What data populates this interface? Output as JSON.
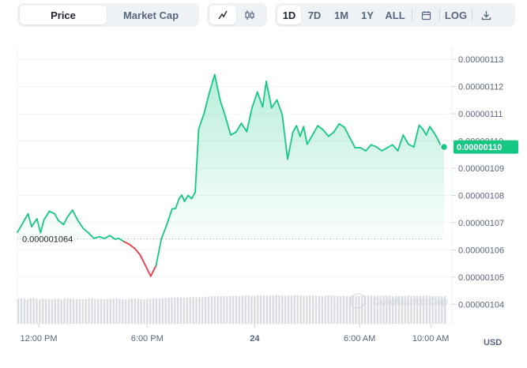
{
  "toolbar": {
    "view_tabs": [
      {
        "label": "Price",
        "active": true
      },
      {
        "label": "Market Cap",
        "active": false
      }
    ],
    "chart_type_icons": [
      {
        "name": "line-chart-icon",
        "active": true
      },
      {
        "name": "candlestick-icon",
        "active": false
      }
    ],
    "ranges": [
      {
        "label": "1D",
        "active": true
      },
      {
        "label": "7D",
        "active": false
      },
      {
        "label": "1M",
        "active": false
      },
      {
        "label": "1Y",
        "active": false
      },
      {
        "label": "ALL",
        "active": false
      }
    ],
    "calendar_icon": "calendar-icon",
    "log_label": "LOG",
    "download_icon": "download-icon"
  },
  "currency_label": "USD",
  "watermark": "CoinMarketCap",
  "colors": {
    "up": "#16c784",
    "down": "#ea3943",
    "badge": "#16c784",
    "grid": "#eff2f5",
    "volume": "#d9dde3"
  },
  "chart_data": {
    "type": "line",
    "y_axis_labels": [
      "0.00000113",
      "0.00000112",
      "0.00000111",
      "0.00000110",
      "0.00000109",
      "0.00000108",
      "0.00000107",
      "0.00000106",
      "0.00000105",
      "0.00000104"
    ],
    "y_axis_ticks": [
      1.13e-06,
      1.12e-06,
      1.11e-06,
      1.1e-06,
      1.09e-06,
      1.08e-06,
      1.07e-06,
      1.06e-06,
      1.05e-06,
      1.04e-06
    ],
    "ylim": [
      1.0363e-06,
      1.1344e-06
    ],
    "x_axis_labels": [
      "12:00 PM",
      "6:00 PM",
      "24",
      "6:00 AM",
      "10:00 AM"
    ],
    "x_axis_ticks": [
      11.8,
      17.9,
      23.95,
      29.85,
      33.85
    ],
    "xlim": [
      10.6,
      34.6
    ],
    "reference_price": 1.064e-06,
    "reference_label": "0.000001064",
    "current_price_label": "0.00000110",
    "x": [
      10.6,
      10.9,
      11.2,
      11.4,
      11.7,
      11.9,
      12.1,
      12.4,
      12.7,
      12.9,
      13.2,
      13.4,
      13.7,
      14.0,
      14.3,
      14.6,
      14.9,
      15.2,
      15.5,
      15.8,
      16.1,
      16.3,
      16.6,
      16.9,
      17.2,
      17.5,
      17.8,
      18.1,
      18.4,
      18.7,
      19.0,
      19.3,
      19.5,
      19.7,
      19.85,
      20.0,
      20.2,
      20.4,
      20.6,
      20.8,
      21.1,
      21.4,
      21.7,
      22.0,
      22.3,
      22.6,
      22.9,
      23.2,
      23.5,
      23.8,
      24.1,
      24.4,
      24.6,
      24.9,
      25.2,
      25.5,
      25.8,
      26.1,
      26.3,
      26.5,
      26.7,
      26.9,
      27.2,
      27.5,
      27.8,
      28.1,
      28.4,
      28.7,
      29.0,
      29.3,
      29.6,
      29.9,
      30.2,
      30.5,
      30.8,
      31.1,
      31.4,
      31.7,
      32.0,
      32.3,
      32.6,
      32.9,
      33.2,
      33.4,
      33.6,
      33.8,
      34.0,
      34.2,
      34.4,
      34.6
    ],
    "y": [
      1.0664e-06,
      1.0698e-06,
      1.0732e-06,
      1.0685e-06,
      1.0714e-06,
      1.0663e-06,
      1.0711e-06,
      1.0742e-06,
      1.0732e-06,
      1.0708e-06,
      1.0693e-06,
      1.0719e-06,
      1.0746e-06,
      1.0708e-06,
      1.0679e-06,
      1.0662e-06,
      1.0642e-06,
      1.0648e-06,
      1.0642e-06,
      1.0652e-06,
      1.0639e-06,
      1.0642e-06,
      1.063e-06,
      1.062e-06,
      1.0605e-06,
      1.0582e-06,
      1.0543e-06,
      1.0503e-06,
      1.0542e-06,
      1.064e-06,
      1.0692e-06,
      1.075e-06,
      1.0752e-06,
      1.0789e-06,
      1.0801e-06,
      1.0778e-06,
      1.08e-06,
      1.0788e-06,
      1.0811e-06,
      1.1044e-06,
      1.1101e-06,
      1.1178e-06,
      1.1244e-06,
      1.1151e-06,
      1.109e-06,
      1.1022e-06,
      1.1033e-06,
      1.1065e-06,
      1.1034e-06,
      1.1122e-06,
      1.118e-06,
      1.1125e-06,
      1.1219e-06,
      1.1122e-06,
      1.1151e-06,
      1.1096e-06,
      1.0933e-06,
      1.1033e-06,
      1.1056e-06,
      1.1017e-06,
      1.1053e-06,
      1.0988e-06,
      1.1022e-06,
      1.1056e-06,
      1.1041e-06,
      1.1017e-06,
      1.1033e-06,
      1.1063e-06,
      1.105e-06,
      1.1012e-06,
      1.0975e-06,
      1.0975e-06,
      1.0964e-06,
      1.0986e-06,
      1.0978e-06,
      1.0964e-06,
      1.0975e-06,
      1.0986e-06,
      1.0964e-06,
      1.1022e-06,
      1.0988e-06,
      1.0978e-06,
      1.1058e-06,
      1.1044e-06,
      1.1022e-06,
      1.1053e-06,
      1.1034e-06,
      1.1012e-06,
      1.0986e-06,
      1.0978e-06
    ],
    "volume": [
      0.7,
      0.71,
      0.69,
      0.72,
      0.7,
      0.71,
      0.7,
      0.69,
      0.71,
      0.7,
      0.72,
      0.71,
      0.7,
      0.69,
      0.7,
      0.71,
      0.7,
      0.7,
      0.69,
      0.7,
      0.71,
      0.7,
      0.69,
      0.7,
      0.71,
      0.7,
      0.69,
      0.7,
      0.71,
      0.72,
      0.72,
      0.73,
      0.74,
      0.74,
      0.75,
      0.74,
      0.75,
      0.74,
      0.75,
      0.76,
      0.77,
      0.78,
      0.78,
      0.77,
      0.78,
      0.79,
      0.78,
      0.79,
      0.8,
      0.79,
      0.8,
      0.8,
      0.79,
      0.8,
      0.81,
      0.8,
      0.79,
      0.8,
      0.81,
      0.8,
      0.79,
      0.8,
      0.79,
      0.78,
      0.79,
      0.8,
      0.79,
      0.78,
      0.79,
      0.78,
      0.79,
      0.78,
      0.79,
      0.8,
      0.79,
      0.78,
      0.79,
      0.79,
      0.78,
      0.79,
      0.78,
      0.79,
      0.78,
      0.79,
      0.78,
      0.79,
      0.78,
      0.79,
      0.78,
      0.78
    ]
  }
}
